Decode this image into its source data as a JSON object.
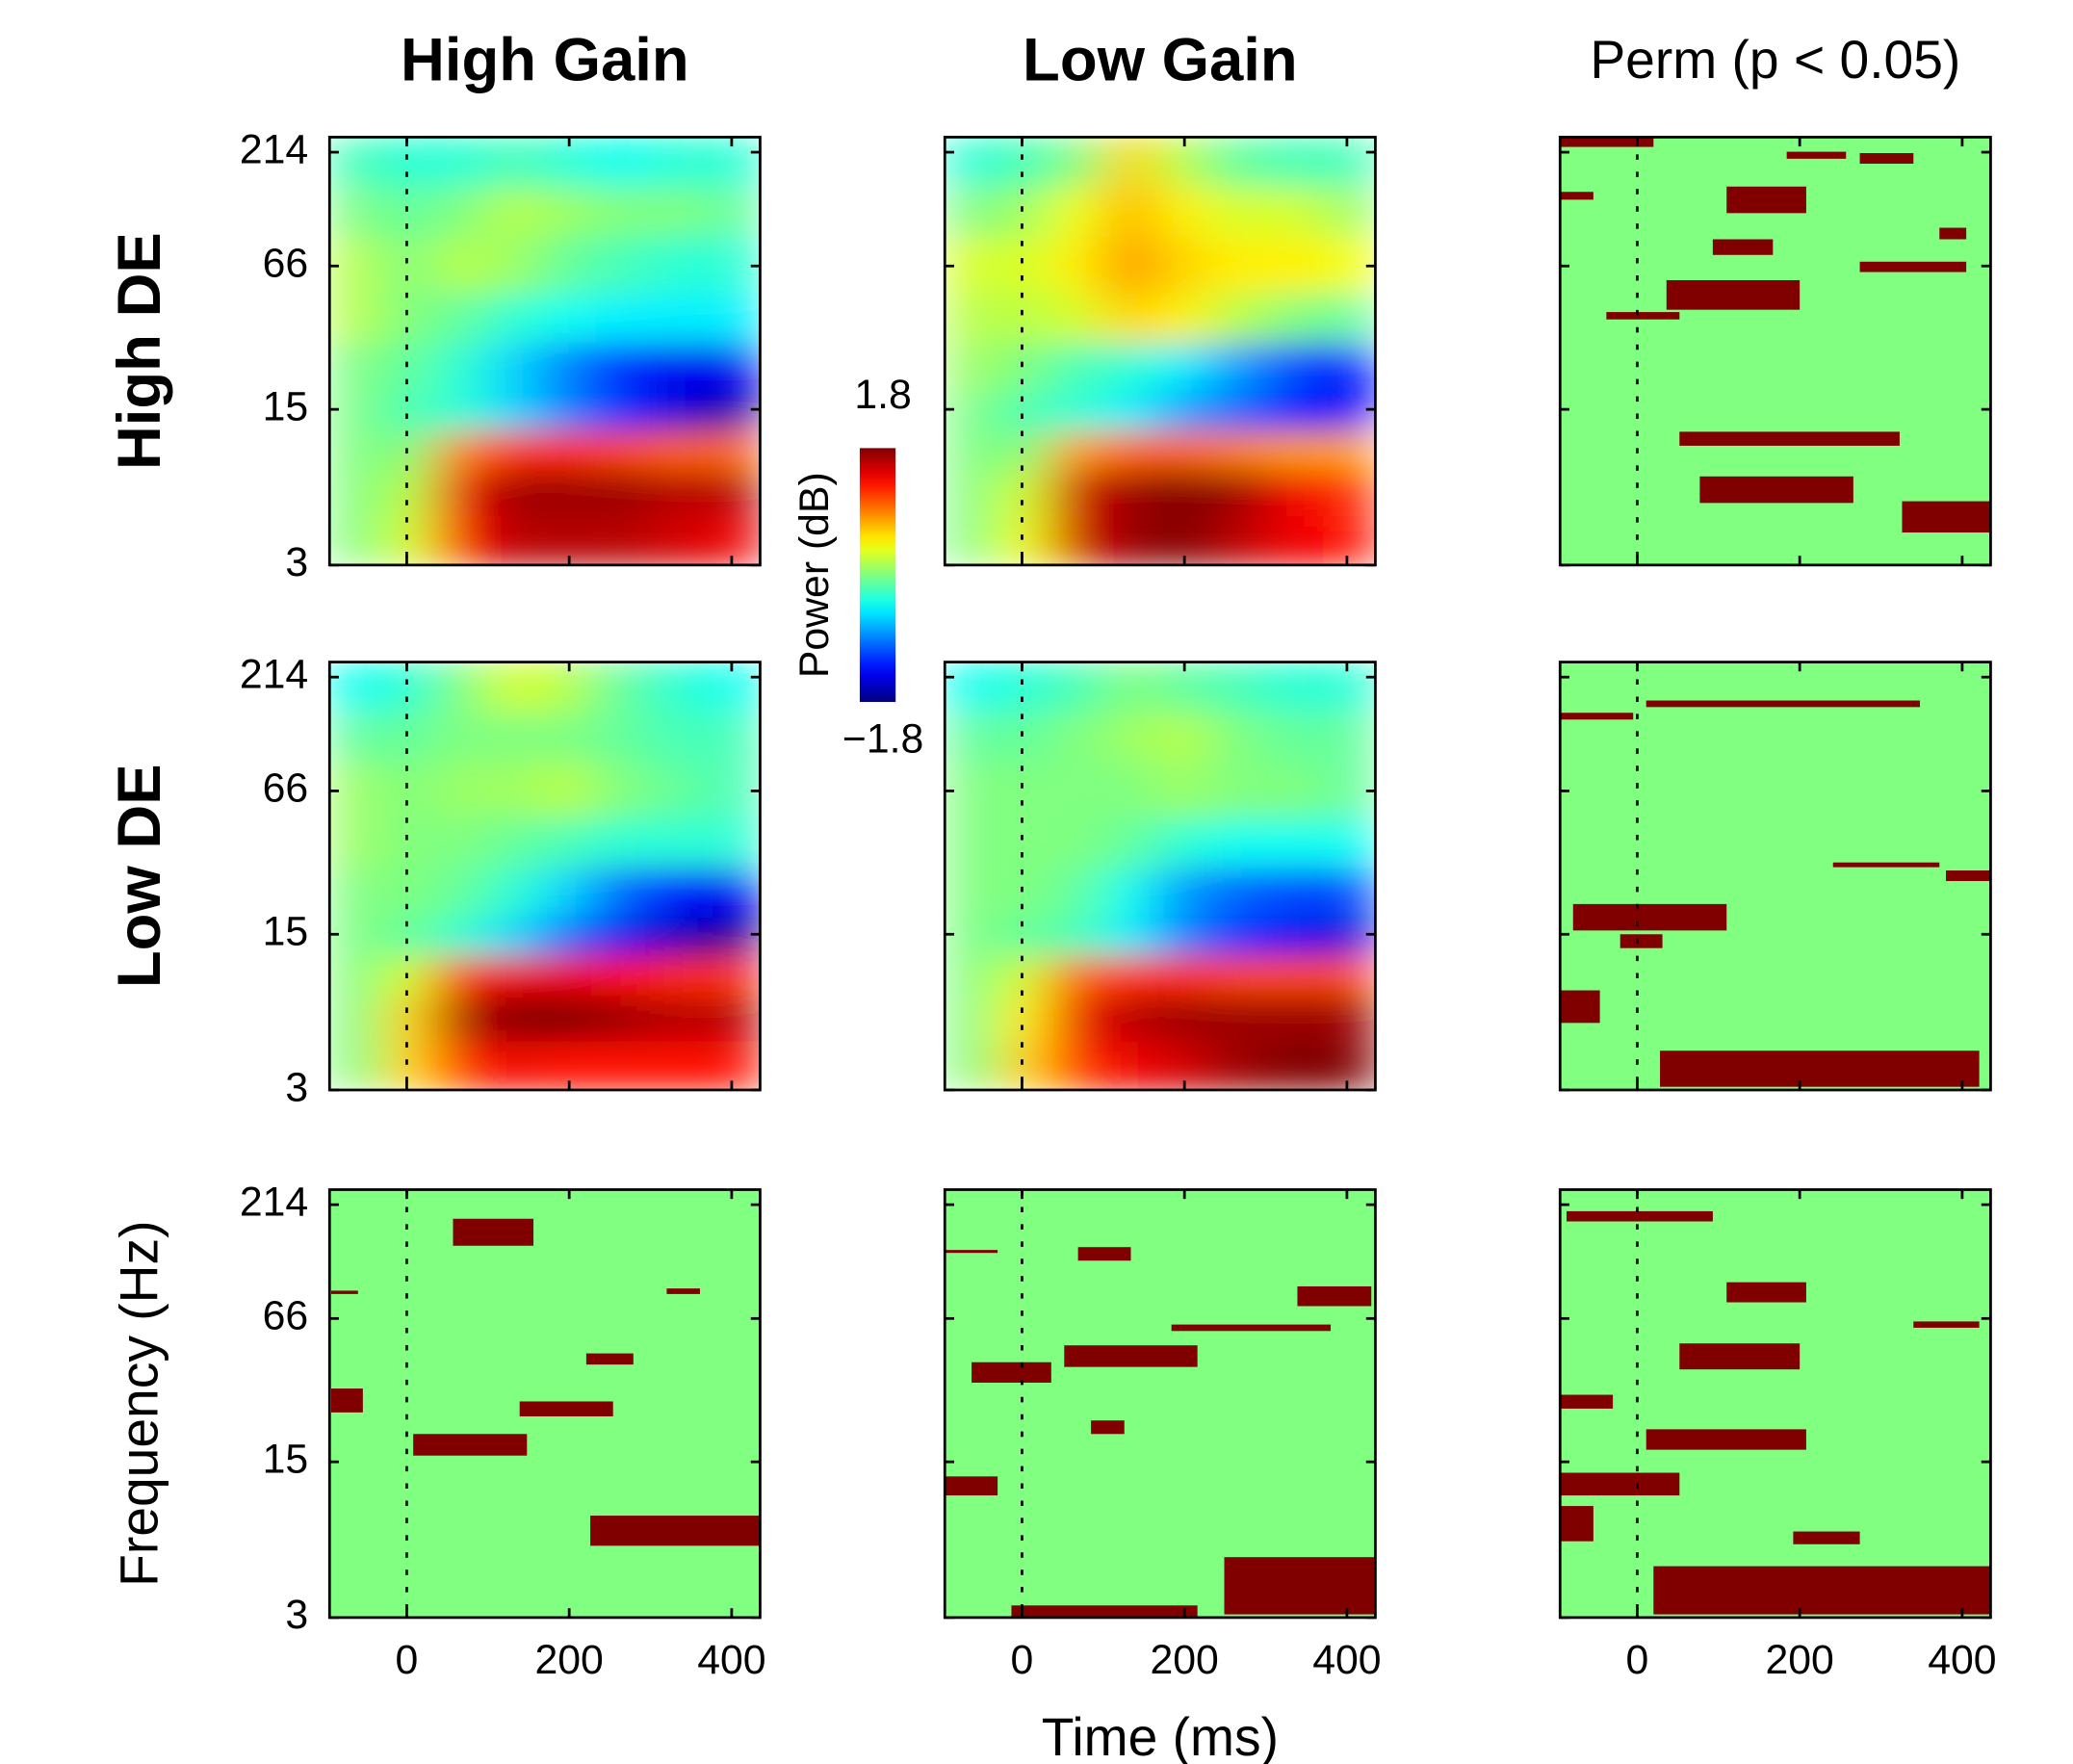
{
  "chart_data": [
    {
      "type": "heatmap",
      "title": "High Gain",
      "ylabel": "High DE",
      "xlim": [
        -95,
        435
      ],
      "ylim": [
        3,
        250
      ],
      "ylog": true,
      "xticks": [
        0,
        200,
        400
      ],
      "yticks": [
        3,
        15,
        66,
        214
      ],
      "xbins": [
        -95,
        -30,
        35,
        100,
        165,
        230,
        300,
        370,
        435
      ],
      "ybins": [
        3,
        5,
        8,
        12,
        18,
        30,
        50,
        90,
        150,
        250
      ],
      "values": [
        [
          0,
          0.3,
          1.3,
          1.6,
          1.6,
          1.6,
          1.5,
          1.4
        ],
        [
          0,
          0.2,
          1.4,
          1.7,
          1.7,
          1.7,
          1.6,
          1.6
        ],
        [
          0,
          0,
          0.9,
          1.2,
          1.2,
          1.1,
          1.0,
          1.0
        ],
        [
          0,
          -0.2,
          -0.3,
          -0.6,
          -0.9,
          -1.2,
          -1.5,
          -1.7
        ],
        [
          0,
          -0.1,
          -0.3,
          -0.6,
          -0.9,
          -1.2,
          -1.4,
          -1.4
        ],
        [
          0.2,
          0,
          -0.1,
          -0.3,
          -0.4,
          -0.5,
          -0.5,
          -0.5
        ],
        [
          0.2,
          0,
          0.2,
          0.1,
          -0.1,
          -0.2,
          -0.3,
          -0.3
        ],
        [
          0,
          -0.1,
          0,
          0.2,
          0.1,
          0,
          0,
          -0.1
        ],
        [
          -0.2,
          -0.3,
          -0.3,
          -0.2,
          -0.3,
          -0.4,
          -0.3,
          -0.3
        ]
      ]
    },
    {
      "type": "heatmap",
      "title": "Low Gain",
      "xlim": [
        -95,
        435
      ],
      "ylim": [
        3,
        250
      ],
      "ylog": true,
      "xticks": [
        0,
        200,
        400
      ],
      "yticks": [
        3,
        15,
        66,
        214
      ],
      "xbins": [
        -95,
        -30,
        35,
        100,
        165,
        230,
        300,
        370,
        435
      ],
      "ybins": [
        3,
        5,
        8,
        12,
        18,
        30,
        50,
        90,
        150,
        250
      ],
      "values": [
        [
          0,
          0.4,
          1.5,
          1.7,
          1.8,
          1.6,
          1.4,
          1.3
        ],
        [
          0,
          0.3,
          1.5,
          1.7,
          1.8,
          1.7,
          1.4,
          1.2
        ],
        [
          0,
          0,
          0.8,
          1.0,
          1.0,
          0.9,
          0.8,
          0.8
        ],
        [
          0,
          -0.2,
          -0.3,
          -0.5,
          -0.8,
          -1.0,
          -1.3,
          -1.4
        ],
        [
          0.1,
          0,
          -0.2,
          -0.3,
          -0.5,
          -0.8,
          -1.1,
          -1.3
        ],
        [
          0.2,
          0.2,
          0.3,
          0.6,
          0.5,
          0.2,
          0,
          -0.1
        ],
        [
          0.3,
          0.3,
          0.5,
          0.8,
          0.6,
          0.5,
          0.5,
          0.4
        ],
        [
          0,
          0.1,
          0.4,
          0.7,
          0.5,
          0.3,
          0.3,
          0.1
        ],
        [
          -0.3,
          -0.2,
          0,
          0.6,
          0.2,
          -0.1,
          -0.2,
          -0.2
        ]
      ],
      "colorbar": {
        "label": "Power (dB)",
        "colormap": "jet",
        "lim": [
          -1.8,
          1.8
        ],
        "ticks": [
          1.8,
          {
            "value": -1.8,
            "label": "−1.8"
          }
        ]
      }
    },
    {
      "type": "mask",
      "title": "Perm (p < 0.05)",
      "background": "#80ff80",
      "color": "#800000",
      "xlim": [
        -95,
        435
      ],
      "ylim": [
        3,
        250
      ],
      "ylog": true,
      "xticks": [
        0,
        200,
        400
      ],
      "yticks": [
        3,
        15,
        66,
        214
      ],
      "clusters": [
        [
          52,
          323,
          10.3,
          11.9
        ],
        [
          77,
          266,
          5.7,
          7.5
        ],
        [
          326,
          435,
          4.2,
          5.8
        ],
        [
          36,
          200,
          42,
          57
        ],
        [
          93,
          167,
          74,
          87
        ],
        [
          110,
          208,
          114,
          150
        ],
        [
          274,
          405,
          62,
          69
        ],
        [
          -95,
          20,
          226,
          250
        ],
        [
          372,
          405,
          87,
          98
        ],
        [
          -95,
          -54,
          131,
          142
        ],
        [
          184,
          257,
          200,
          215
        ],
        [
          -38,
          52,
          38,
          41
        ],
        [
          274,
          340,
          190,
          212
        ]
      ]
    },
    {
      "type": "heatmap",
      "ylabel": "Low DE",
      "xlim": [
        -95,
        435
      ],
      "ylim": [
        3,
        250
      ],
      "ylog": true,
      "xticks": [
        0,
        200,
        400
      ],
      "yticks": [
        3,
        15,
        66,
        214
      ],
      "xbins": [
        -95,
        -30,
        35,
        100,
        165,
        230,
        300,
        370,
        435
      ],
      "ybins": [
        3,
        5,
        8,
        12,
        18,
        30,
        50,
        90,
        150,
        250
      ],
      "values": [
        [
          0,
          0.6,
          1.2,
          1.4,
          1.3,
          1.3,
          1.3,
          1.3
        ],
        [
          0,
          0.6,
          1.6,
          1.8,
          1.8,
          1.7,
          1.6,
          1.6
        ],
        [
          0,
          0.3,
          1.2,
          1.4,
          1.4,
          1.3,
          1.2,
          1.2
        ],
        [
          0,
          -0.1,
          -0.3,
          -0.6,
          -1.0,
          -1.4,
          -1.6,
          -1.8
        ],
        [
          0,
          0,
          -0.1,
          -0.3,
          -0.6,
          -1.0,
          -1.3,
          -1.4
        ],
        [
          0.1,
          0,
          0,
          -0.1,
          -0.2,
          -0.3,
          -0.3,
          -0.3
        ],
        [
          0.1,
          0,
          0.1,
          0.1,
          0.2,
          0,
          -0.1,
          -0.2
        ],
        [
          -0.1,
          -0.1,
          0,
          0,
          0,
          -0.1,
          -0.2,
          -0.2
        ],
        [
          -0.4,
          -0.3,
          0,
          0.3,
          0.2,
          -0.1,
          -0.3,
          -0.4
        ]
      ]
    },
    {
      "type": "heatmap",
      "xlim": [
        -95,
        435
      ],
      "ylim": [
        3,
        250
      ],
      "ylog": true,
      "xticks": [
        0,
        200,
        400
      ],
      "yticks": [
        3,
        15,
        66,
        214
      ],
      "xbins": [
        -95,
        -30,
        35,
        100,
        165,
        230,
        300,
        370,
        435
      ],
      "ybins": [
        3,
        5,
        8,
        12,
        18,
        30,
        50,
        90,
        150,
        250
      ],
      "values": [
        [
          0,
          0.6,
          1.2,
          1.4,
          1.5,
          1.7,
          1.8,
          1.8
        ],
        [
          0,
          0.5,
          1.4,
          1.6,
          1.7,
          1.7,
          1.7,
          1.7
        ],
        [
          0,
          0.3,
          1.0,
          1.2,
          1.2,
          1.1,
          1.1,
          1.1
        ],
        [
          0,
          -0.1,
          -0.2,
          -0.5,
          -0.9,
          -1.2,
          -1.4,
          -1.5
        ],
        [
          0,
          0,
          -0.1,
          -0.4,
          -0.8,
          -1.0,
          -1.1,
          -1.1
        ],
        [
          0,
          0,
          0,
          -0.1,
          -0.3,
          -0.4,
          -0.4,
          -0.4
        ],
        [
          0,
          0,
          0,
          0,
          0.1,
          0,
          0,
          -0.1
        ],
        [
          -0.1,
          -0.1,
          0,
          0.1,
          0.2,
          0,
          -0.1,
          -0.1
        ],
        [
          -0.4,
          -0.3,
          -0.2,
          0,
          -0.1,
          -0.2,
          -0.3,
          -0.3
        ]
      ]
    },
    {
      "type": "mask",
      "background": "#80ff80",
      "color": "#800000",
      "xlim": [
        -95,
        435
      ],
      "ylim": [
        3,
        250
      ],
      "ylog": true,
      "xticks": [
        0,
        200,
        400
      ],
      "yticks": [
        3,
        15,
        66,
        214
      ],
      "clusters": [
        [
          28,
          421,
          3.1,
          4.5
        ],
        [
          -95,
          -46,
          6.0,
          8.4
        ],
        [
          -79,
          110,
          15.6,
          20.5
        ],
        [
          380,
          435,
          26,
          29
        ],
        [
          11,
          348,
          157,
          168
        ],
        [
          -95,
          -5,
          138,
          148
        ],
        [
          241,
          372,
          30,
          31.5
        ],
        [
          -21,
          31,
          13,
          15
        ]
      ]
    },
    {
      "type": "mask",
      "ylabel": "Frequency (Hz)",
      "background": "#80ff80",
      "color": "#800000",
      "xlim": [
        -95,
        435
      ],
      "ylim": [
        3,
        250
      ],
      "ylog": true,
      "xticks": [
        0,
        200,
        400
      ],
      "yticks": [
        3,
        15,
        66,
        214
      ],
      "clusters": [
        [
          226,
          435,
          6.3,
          8.6
        ],
        [
          8,
          148,
          16,
          20
        ],
        [
          139,
          254,
          24,
          28
        ],
        [
          -93,
          -54,
          25,
          32
        ],
        [
          57,
          156,
          140,
          185
        ],
        [
          320,
          361,
          85,
          90
        ],
        [
          221,
          279,
          41,
          46
        ],
        [
          -93,
          -60,
          85,
          88
        ]
      ]
    },
    {
      "type": "mask",
      "xlabel": "Time (ms)",
      "background": "#80ff80",
      "color": "#800000",
      "xlim": [
        -95,
        435
      ],
      "ylim": [
        3,
        250
      ],
      "ylog": true,
      "xticks": [
        0,
        200,
        400
      ],
      "yticks": [
        3,
        15,
        66,
        214
      ],
      "clusters": [
        [
          249,
          435,
          3.1,
          5.6
        ],
        [
          -13,
          216,
          3,
          3.4
        ],
        [
          -95,
          -30,
          10.6,
          12.9
        ],
        [
          -62,
          36,
          34,
          42
        ],
        [
          339,
          430,
          75,
          92
        ],
        [
          69,
          134,
          120,
          138
        ],
        [
          52,
          216,
          40,
          50
        ],
        [
          85,
          126,
          20,
          23
        ],
        [
          -95,
          -30,
          130,
          134
        ],
        [
          184,
          380,
          58,
          62
        ]
      ]
    },
    {
      "type": "mask",
      "background": "#80ff80",
      "color": "#800000",
      "xlim": [
        -95,
        435
      ],
      "ylim": [
        3,
        250
      ],
      "ylog": true,
      "xticks": [
        0,
        200,
        400
      ],
      "yticks": [
        3,
        15,
        66,
        214
      ],
      "clusters": [
        [
          20,
          435,
          3.1,
          5.1
        ],
        [
          -95,
          52,
          10.6,
          13.4
        ],
        [
          11,
          208,
          17,
          21
        ],
        [
          192,
          274,
          6.4,
          7.3
        ],
        [
          -95,
          -54,
          6.6,
          9.5
        ],
        [
          52,
          200,
          39,
          51
        ],
        [
          110,
          208,
          78,
          96
        ],
        [
          -95,
          -30,
          26,
          30
        ],
        [
          -87,
          93,
          180,
          200
        ],
        [
          340,
          421,
          60,
          64
        ]
      ]
    }
  ]
}
